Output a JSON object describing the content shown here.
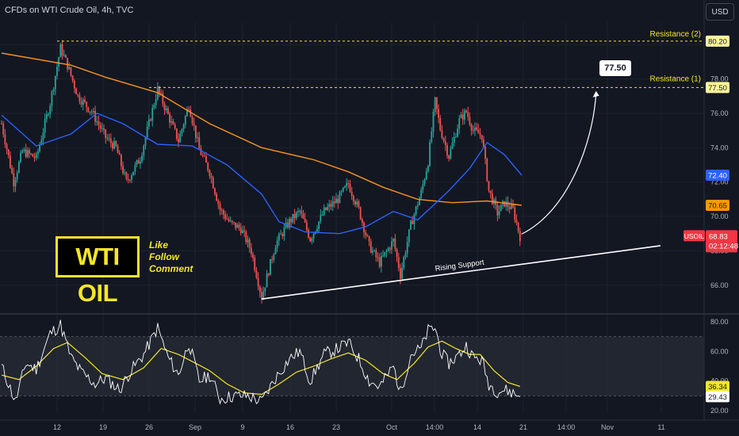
{
  "header": {
    "title": "CFDs on WTI Crude Oil, 4h, TVC",
    "currency_button": "USD"
  },
  "branding": {
    "logo_text": "WTI OIL",
    "cta": [
      "Like",
      "Follow",
      "Comment"
    ]
  },
  "annotations": {
    "callout_text": "77.50",
    "resistance_1": "Resistance (1)",
    "resistance_2": "Resistance (2)",
    "rising_support": "Rising Support"
  },
  "price_labels": {
    "resistance_2": "80.20",
    "resistance_1": "77.50",
    "ma_blue": "72.40",
    "ma_orange": "70.65",
    "symbol": "USOIL",
    "last_price": "68.83",
    "countdown": "02:12:48",
    "rsi_ma": "36.34",
    "rsi": "29.43"
  },
  "colors": {
    "background": "#131722",
    "grid": "#1e222d",
    "up": "#26a69a",
    "down": "#ef5350",
    "ma_orange": "#f7931a",
    "ma_blue": "#2962ff",
    "resistance": "#f5e628",
    "rsi_line": "#ffffff",
    "rsi_ma": "#f5e628",
    "label_blue": "#2962ff",
    "label_orange": "#ff9800",
    "label_red": "#f23645",
    "label_yellow": "#f5e628"
  },
  "chart_data": [
    {
      "type": "candlestick",
      "title": "CFDs on WTI Crude Oil, 4h, TVC",
      "y_axis_ticks": [
        "80.00",
        "78.00",
        "76.00",
        "74.00",
        "72.00",
        "70.00",
        "68.00",
        "66.00"
      ],
      "ylim": [
        64.7,
        81.3
      ],
      "x_axis_ticks": [
        "12",
        "19",
        "26",
        "Sep",
        "9",
        "16",
        "23",
        "Oct",
        "14:00",
        "14",
        "21",
        "14:00",
        "Nov",
        "11"
      ],
      "x_axis_tick_index": [
        0,
        1,
        2,
        3,
        4,
        5,
        6,
        7,
        8,
        9,
        10,
        11,
        12,
        13
      ],
      "price_path": [
        [
          0,
          75.4
        ],
        [
          7,
          72.0
        ],
        [
          12,
          73.8
        ],
        [
          20,
          73.4
        ],
        [
          28,
          76.6
        ],
        [
          34,
          79.8
        ],
        [
          38,
          78.8
        ],
        [
          44,
          77.0
        ],
        [
          52,
          76.1
        ],
        [
          60,
          74.6
        ],
        [
          66,
          74.0
        ],
        [
          72,
          72.0
        ],
        [
          80,
          73.4
        ],
        [
          90,
          77.4
        ],
        [
          96,
          75.9
        ],
        [
          102,
          74.4
        ],
        [
          108,
          76.5
        ],
        [
          114,
          73.9
        ],
        [
          120,
          72.6
        ],
        [
          126,
          70.4
        ],
        [
          132,
          69.6
        ],
        [
          138,
          69.3
        ],
        [
          144,
          68.0
        ],
        [
          150,
          65.3
        ],
        [
          158,
          68.4
        ],
        [
          166,
          69.7
        ],
        [
          172,
          70.3
        ],
        [
          178,
          68.7
        ],
        [
          186,
          70.3
        ],
        [
          194,
          71.0
        ],
        [
          200,
          71.9
        ],
        [
          206,
          70.4
        ],
        [
          212,
          68.3
        ],
        [
          218,
          67.3
        ],
        [
          226,
          68.6
        ],
        [
          230,
          66.6
        ],
        [
          236,
          69.5
        ],
        [
          242,
          71.4
        ],
        [
          246,
          73.2
        ],
        [
          250,
          76.7
        ],
        [
          253,
          75.1
        ],
        [
          258,
          73.5
        ],
        [
          264,
          75.6
        ],
        [
          268,
          76.1
        ],
        [
          272,
          75.0
        ],
        [
          277,
          74.7
        ],
        [
          281,
          71.5
        ],
        [
          286,
          70.2
        ],
        [
          290,
          70.8
        ],
        [
          295,
          70.4
        ],
        [
          299,
          68.83
        ]
      ],
      "overlays": [
        {
          "name": "MA (orange)",
          "points": [
            [
              0,
              79.5
            ],
            [
              40,
              78.8
            ],
            [
              60,
              78.1
            ],
            [
              90,
              77.2
            ],
            [
              120,
              75.4
            ],
            [
              150,
              74.0
            ],
            [
              180,
              73.3
            ],
            [
              200,
              72.6
            ],
            [
              220,
              71.7
            ],
            [
              240,
              71.0
            ],
            [
              260,
              70.8
            ],
            [
              280,
              70.9
            ],
            [
              300,
              70.65
            ]
          ]
        },
        {
          "name": "MA (blue)",
          "points": [
            [
              0,
              75.9
            ],
            [
              20,
              74.1
            ],
            [
              40,
              74.8
            ],
            [
              55,
              76.0
            ],
            [
              70,
              75.4
            ],
            [
              90,
              74.2
            ],
            [
              110,
              74.1
            ],
            [
              130,
              73.0
            ],
            [
              150,
              71.3
            ],
            [
              160,
              69.7
            ],
            [
              175,
              69.1
            ],
            [
              195,
              69.0
            ],
            [
              210,
              69.4
            ],
            [
              226,
              70.3
            ],
            [
              240,
              69.8
            ],
            [
              258,
              71.5
            ],
            [
              270,
              72.8
            ],
            [
              280,
              74.3
            ],
            [
              290,
              73.6
            ],
            [
              300,
              72.4
            ]
          ]
        }
      ],
      "resistance_levels": [
        80.2,
        77.5
      ],
      "rising_support": [
        [
          150,
          65.2
        ],
        [
          380,
          68.3
        ]
      ],
      "projection": [
        [
          299,
          68.7
        ],
        [
          341,
          77.3
        ]
      ]
    },
    {
      "type": "line",
      "name": "RSI",
      "y_axis_ticks": [
        "80.00",
        "60.00",
        "40.00",
        "20.00"
      ],
      "ylim": [
        20,
        80
      ],
      "band": [
        30,
        70
      ],
      "series": [
        {
          "name": "RSI",
          "points": [
            [
              0,
              50
            ],
            [
              8,
              26
            ],
            [
              14,
              52
            ],
            [
              20,
              48
            ],
            [
              28,
              72
            ],
            [
              34,
              78
            ],
            [
              40,
              56
            ],
            [
              46,
              46
            ],
            [
              54,
              38
            ],
            [
              60,
              42
            ],
            [
              68,
              34
            ],
            [
              74,
              46
            ],
            [
              82,
              58
            ],
            [
              90,
              76
            ],
            [
              96,
              56
            ],
            [
              102,
              44
            ],
            [
              108,
              66
            ],
            [
              114,
              40
            ],
            [
              120,
              44
            ],
            [
              126,
              28
            ],
            [
              134,
              30
            ],
            [
              142,
              30
            ],
            [
              150,
              26
            ],
            [
              158,
              42
            ],
            [
              166,
              55
            ],
            [
              172,
              60
            ],
            [
              178,
              40
            ],
            [
              186,
              58
            ],
            [
              194,
              62
            ],
            [
              200,
              66
            ],
            [
              206,
              55
            ],
            [
              212,
              40
            ],
            [
              218,
              36
            ],
            [
              226,
              50
            ],
            [
              230,
              32
            ],
            [
              236,
              58
            ],
            [
              242,
              62
            ],
            [
              246,
              74
            ],
            [
              250,
              76
            ],
            [
              254,
              58
            ],
            [
              258,
              52
            ],
            [
              264,
              58
            ],
            [
              268,
              64
            ],
            [
              272,
              56
            ],
            [
              277,
              54
            ],
            [
              281,
              38
            ],
            [
              286,
              33
            ],
            [
              290,
              34
            ],
            [
              295,
              32
            ],
            [
              299,
              29.43
            ]
          ]
        },
        {
          "name": "RSI MA",
          "points": [
            [
              0,
              44
            ],
            [
              10,
              41
            ],
            [
              20,
              50
            ],
            [
              30,
              62
            ],
            [
              38,
              66
            ],
            [
              48,
              56
            ],
            [
              58,
              45
            ],
            [
              70,
              41
            ],
            [
              82,
              49
            ],
            [
              92,
              62
            ],
            [
              102,
              58
            ],
            [
              112,
              52
            ],
            [
              120,
              47
            ],
            [
              130,
              38
            ],
            [
              140,
              32
            ],
            [
              150,
              31
            ],
            [
              160,
              38
            ],
            [
              170,
              46
            ],
            [
              180,
              50
            ],
            [
              190,
              55
            ],
            [
              200,
              59
            ],
            [
              210,
              54
            ],
            [
              220,
              45
            ],
            [
              228,
              41
            ],
            [
              238,
              52
            ],
            [
              246,
              63
            ],
            [
              254,
              67
            ],
            [
              262,
              62
            ],
            [
              270,
              58
            ],
            [
              276,
              58
            ],
            [
              284,
              47
            ],
            [
              292,
              39
            ],
            [
              299,
              36.34
            ]
          ]
        }
      ]
    }
  ]
}
